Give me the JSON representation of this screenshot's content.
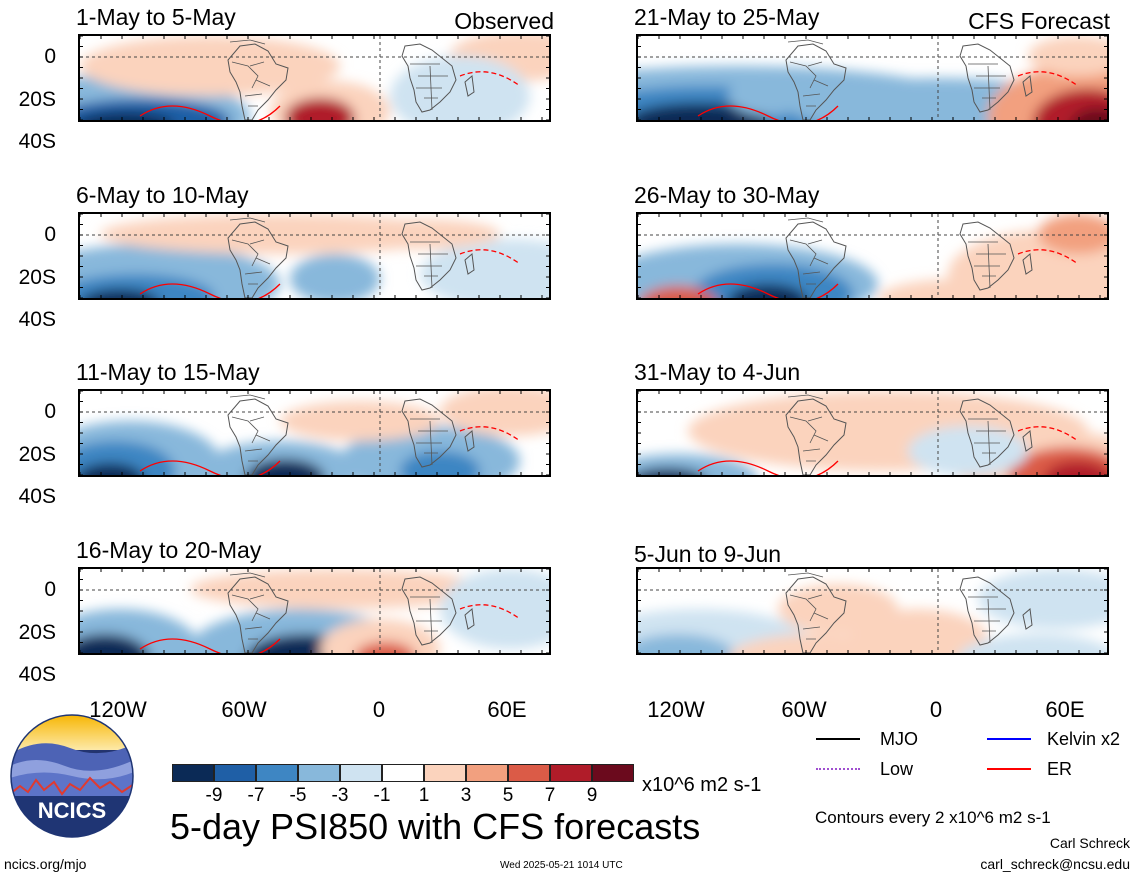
{
  "panels": [
    {
      "period": "1-May to 5-May",
      "tag": "Observed"
    },
    {
      "period": "21-May to 25-May",
      "tag": "CFS Forecast"
    },
    {
      "period": "6-May to 10-May",
      "tag": ""
    },
    {
      "period": "26-May to 30-May",
      "tag": ""
    },
    {
      "period": "11-May to 15-May",
      "tag": ""
    },
    {
      "period": "31-May to 4-Jun",
      "tag": ""
    },
    {
      "period": "16-May to 20-May",
      "tag": ""
    },
    {
      "period": "5-Jun to 9-Jun",
      "tag": ""
    }
  ],
  "y_ticks": [
    "0",
    "20S",
    "40S"
  ],
  "x_ticks": [
    "120W",
    "60W",
    "0",
    "60E"
  ],
  "colorbar": {
    "ticks": [
      "-9",
      "-7",
      "-5",
      "-3",
      "-1",
      "1",
      "3",
      "5",
      "7",
      "9"
    ],
    "colors": [
      "#0b2a56",
      "#1f5fa6",
      "#3e86c3",
      "#88b8db",
      "#cfe3f1",
      "#ffffff",
      "#fbd3bd",
      "#f2a07f",
      "#db5b47",
      "#b01c29",
      "#6b0a1d"
    ],
    "units": "x10^6 m2 s-1"
  },
  "legend": [
    {
      "label": "MJO",
      "color": "#000000",
      "style": "solid"
    },
    {
      "label": "Kelvin x2",
      "color": "#0000ff",
      "style": "solid"
    },
    {
      "label": "Low",
      "color": "#a04fd0",
      "style": "dotted"
    },
    {
      "label": "ER",
      "color": "#ff0000",
      "style": "solid"
    }
  ],
  "title": "5-day PSI850 with CFS forecasts",
  "contours_note": "Contours every 2 x10^6 m2 s-1",
  "logo_text": "NCICS",
  "author": "Carl Schreck",
  "email": "carl_schreck@ncsu.edu",
  "website": "ncics.org/mjo",
  "timestamp": "Wed 2025-05-21 1014 UTC"
}
